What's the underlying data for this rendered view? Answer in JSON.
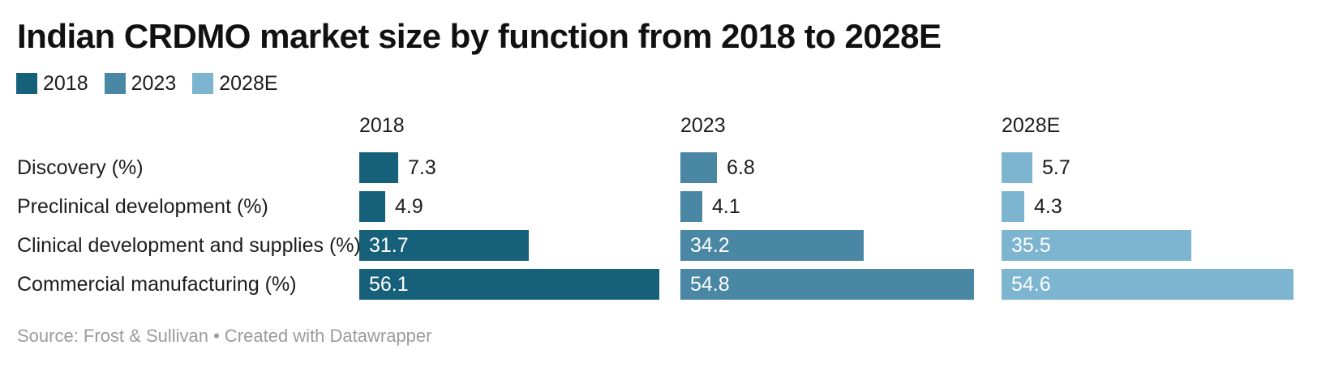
{
  "title": "Indian CRDMO market size by function from 2018 to 2028E",
  "footer": {
    "text": "Source: Frost & Sullivan • Created with Datawrapper"
  },
  "colors": {
    "background": "#ffffff",
    "title_text": "#111111",
    "body_text": "#1d1d1d",
    "value_label_inside": "#ffffff",
    "footer_text": "#9b9b9b"
  },
  "chart_data": {
    "type": "bar",
    "orientation": "horizontal",
    "title": "Indian CRDMO market size by function from 2018 to 2028E",
    "categories": [
      "Discovery (%)",
      "Preclinical development (%)",
      "Clinical development and supplies (%)",
      "Commercial manufacturing (%)"
    ],
    "series": [
      {
        "name": "2018",
        "color": "#17607a",
        "values": [
          7.3,
          4.9,
          31.7,
          56.1
        ]
      },
      {
        "name": "2023",
        "color": "#4a87a5",
        "values": [
          6.8,
          4.1,
          34.2,
          54.8
        ]
      },
      {
        "name": "2028E",
        "color": "#7db5d1",
        "values": [
          5.7,
          4.3,
          35.5,
          54.6
        ]
      }
    ],
    "value_labels": true,
    "grid": false,
    "legend_position": "top-left",
    "xlim": [
      0,
      60
    ],
    "source": "Frost & Sullivan",
    "credit": "Created with Datawrapper"
  }
}
